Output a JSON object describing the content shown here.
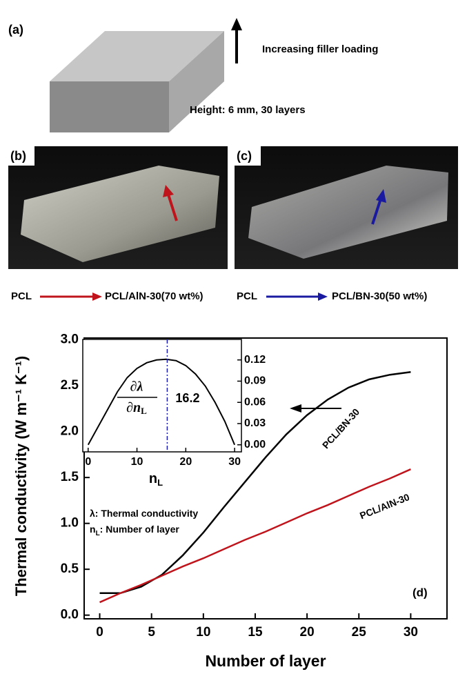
{
  "panels": {
    "a": {
      "label": "(a)",
      "arrow_text": "Increasing filler loading",
      "caption": "Height: 6 mm, 30 layers"
    },
    "b": {
      "label": "(b)",
      "from": "PCL",
      "to": "PCL/AlN-30(70 wt%)"
    },
    "c": {
      "label": "(c)",
      "from": "PCL",
      "to": "PCL/BN-30(50 wt%)"
    }
  },
  "chart_data": {
    "type": "line",
    "panel_label": "(d)",
    "xlabel": "Number of layer",
    "ylabel": "Thermal conductivity (W m⁻¹ K⁻¹)",
    "x": [
      0,
      2,
      4,
      6,
      8,
      10,
      12,
      14,
      16,
      18,
      20,
      22,
      24,
      26,
      28,
      30
    ],
    "series": [
      {
        "name": "PCL/BN-30",
        "color": "#000000",
        "values": [
          0.24,
          0.24,
          0.31,
          0.44,
          0.65,
          0.9,
          1.18,
          1.45,
          1.72,
          1.97,
          2.18,
          2.35,
          2.48,
          2.57,
          2.62,
          2.65
        ]
      },
      {
        "name": "PCL/AlN-30",
        "color": "#c0141c",
        "values": [
          0.14,
          0.24,
          0.33,
          0.43,
          0.53,
          0.62,
          0.72,
          0.82,
          0.91,
          1.01,
          1.11,
          1.2,
          1.3,
          1.4,
          1.49,
          1.59
        ]
      }
    ],
    "xlim": [
      -1.5,
      33.5
    ],
    "ylim": [
      -0.04,
      3.02
    ],
    "xticks": [
      0,
      5,
      10,
      15,
      20,
      25,
      30
    ],
    "yticks": [
      {
        "value": 0,
        "label": "0.0"
      },
      {
        "value": 0.5,
        "label": "0.5"
      },
      {
        "value": 1,
        "label": "1.0"
      },
      {
        "value": 1.5,
        "label": "1.5"
      },
      {
        "value": 2,
        "label": "2.0"
      },
      {
        "value": 2.5,
        "label": "2.5"
      },
      {
        "value": 3,
        "label": "3.0"
      }
    ],
    "notes": [
      {
        "symbol": "λ",
        "subscript": "",
        "text": ": Thermal conductivity"
      },
      {
        "symbol": "n",
        "subscript": "L",
        "text": ": Number of layer"
      }
    ],
    "inset": {
      "xlabel": {
        "symbol": "n",
        "subscript": "L"
      },
      "ylabel": {
        "numerator": "∂λ",
        "denominator": "∂n",
        "subscript": "L"
      },
      "x": [
        0,
        2,
        4,
        6,
        8,
        10,
        12,
        14,
        16,
        18,
        20,
        22,
        24,
        26,
        28,
        30
      ],
      "values": [
        0.0,
        0.025,
        0.05,
        0.075,
        0.095,
        0.108,
        0.116,
        0.12,
        0.121,
        0.119,
        0.112,
        0.1,
        0.083,
        0.06,
        0.033,
        0.0
      ],
      "color": "#000000",
      "peak_x": 16.2,
      "peak_color": "#1a1ab0",
      "xlim": [
        -1.1,
        31.4
      ],
      "ylim": [
        -0.01,
        0.149
      ],
      "xticks": [
        0,
        10,
        20,
        30
      ],
      "yticks": [
        {
          "value": 0,
          "label": "0.00"
        },
        {
          "value": 0.03,
          "label": "0.03"
        },
        {
          "value": 0.06,
          "label": "0.06"
        },
        {
          "value": 0.09,
          "label": "0.09"
        },
        {
          "value": 0.12,
          "label": "0.12"
        }
      ]
    }
  }
}
